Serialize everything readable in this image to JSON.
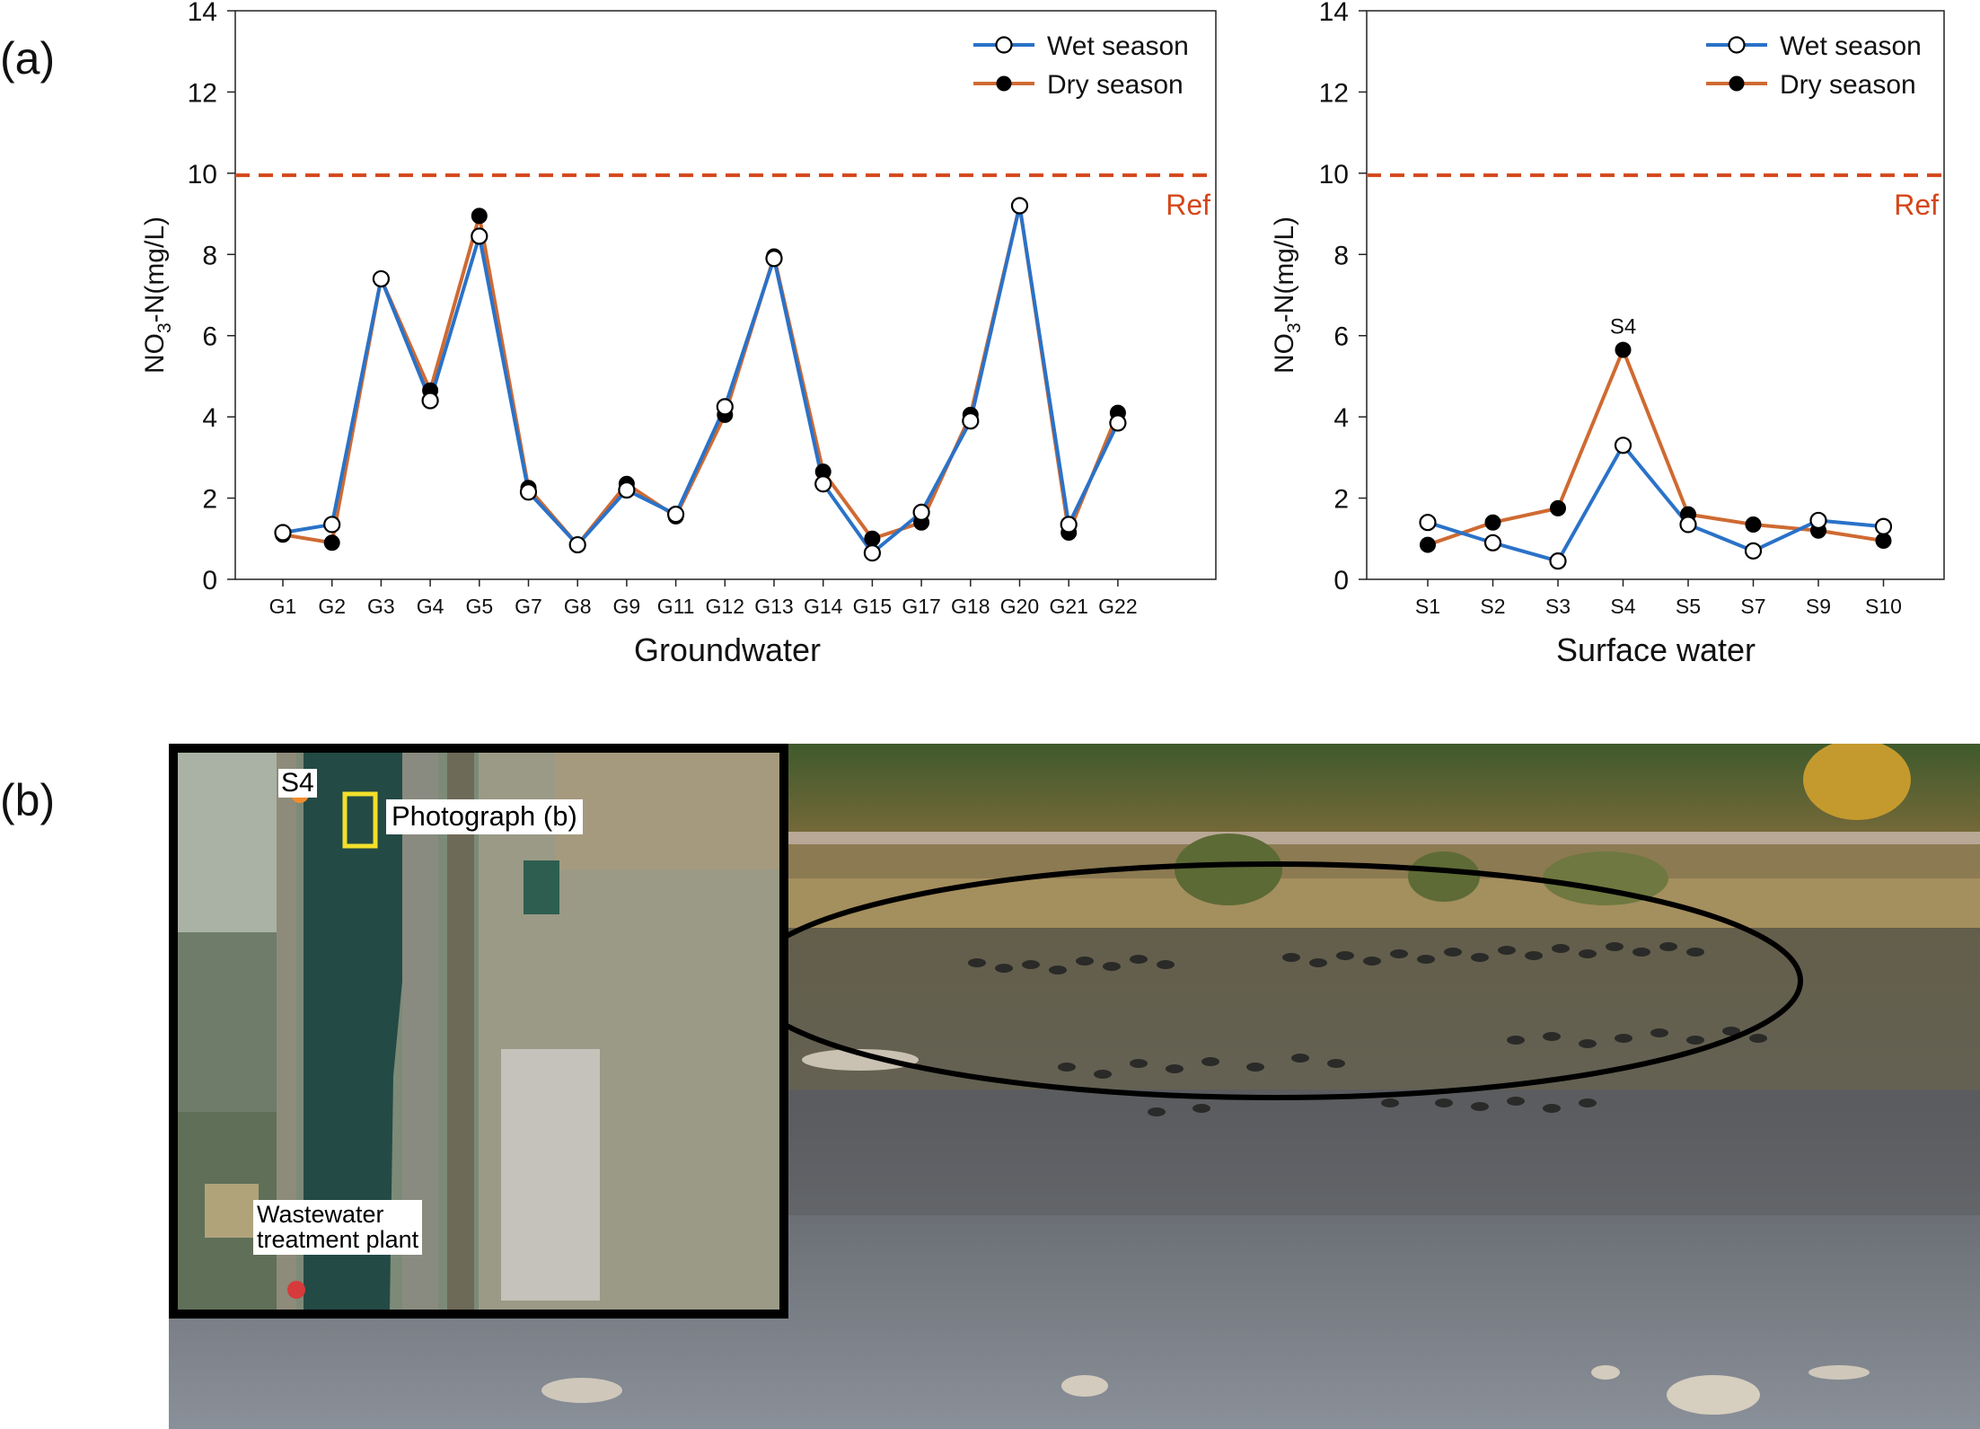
{
  "panels": {
    "a_label": "(a)",
    "b_label": "(b)"
  },
  "colors": {
    "wet": "#2a72c8",
    "dry": "#cf6a32",
    "ref": "#d4471b",
    "photo_ellipse": "#000000"
  },
  "chart_data": [
    {
      "type": "line",
      "title": "",
      "xlabel": "Groundwater",
      "ylabel_main": "NO",
      "ylabel_sub": "3",
      "ylabel_rest": "-N(mg/L)",
      "ylim": [
        0,
        14
      ],
      "yticks": [
        0,
        2,
        4,
        6,
        8,
        10,
        12,
        14
      ],
      "categories": [
        "G1",
        "G2",
        "G3",
        "G4",
        "G5",
        "G7",
        "G8",
        "G9",
        "G11",
        "G12",
        "G13",
        "G14",
        "G15",
        "G17",
        "G18",
        "G20",
        "G21",
        "G22"
      ],
      "series": [
        {
          "name": "Wet season",
          "color": "#2a72c8",
          "marker": "open",
          "values": [
            1.15,
            1.35,
            7.4,
            4.4,
            8.45,
            2.15,
            0.85,
            2.2,
            1.6,
            4.25,
            7.9,
            2.35,
            0.65,
            1.65,
            3.9,
            9.2,
            1.35,
            3.85
          ]
        },
        {
          "name": "Dry season",
          "color": "#cf6a32",
          "marker": "filled",
          "values": [
            1.1,
            0.9,
            7.4,
            4.65,
            8.95,
            2.25,
            0.85,
            2.35,
            1.55,
            4.05,
            7.95,
            2.65,
            1.0,
            1.4,
            4.05,
            9.2,
            1.15,
            4.1
          ]
        }
      ],
      "reference": {
        "value": 9.95,
        "label": "Ref",
        "style": "dashed"
      },
      "annotations": [],
      "legend": "top-right",
      "grid": false
    },
    {
      "type": "line",
      "title": "",
      "xlabel": "Surface water",
      "ylabel_main": "NO",
      "ylabel_sub": "3",
      "ylabel_rest": "-N(mg/L)",
      "ylim": [
        0,
        14
      ],
      "yticks": [
        0,
        2,
        4,
        6,
        8,
        10,
        12,
        14
      ],
      "categories": [
        "S1",
        "S2",
        "S3",
        "S4",
        "S5",
        "S7",
        "S9",
        "S10"
      ],
      "series": [
        {
          "name": "Wet season",
          "color": "#2a72c8",
          "marker": "open",
          "values": [
            1.4,
            0.9,
            0.45,
            3.3,
            1.35,
            0.7,
            1.45,
            1.3
          ]
        },
        {
          "name": "Dry season",
          "color": "#cf6a32",
          "marker": "filled",
          "values": [
            0.85,
            1.4,
            1.75,
            5.65,
            1.6,
            1.35,
            1.2,
            0.95
          ]
        }
      ],
      "reference": {
        "value": 9.95,
        "label": "Ref",
        "style": "dashed"
      },
      "annotations": [
        {
          "category": "S4",
          "value": 5.65,
          "text": "S4"
        }
      ],
      "legend": "top-right",
      "grid": false
    }
  ],
  "map_inset": {
    "s4_label": "S4",
    "photo_label": "Photograph (b)",
    "wwtp_label_line1": "Wastewater",
    "wwtp_label_line2": "treatment plant",
    "s4_color": "#f28c2a",
    "wwtp_color": "#d63a3a",
    "box_color": "#f2e02a"
  }
}
